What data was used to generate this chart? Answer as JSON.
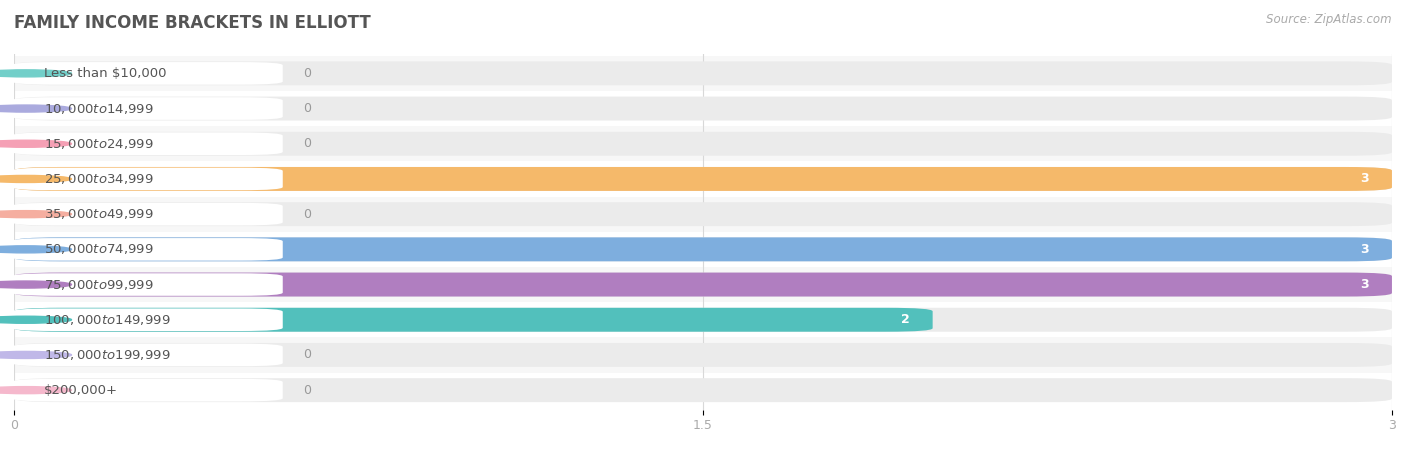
{
  "title": "FAMILY INCOME BRACKETS IN ELLIOTT",
  "source": "Source: ZipAtlas.com",
  "categories": [
    "Less than $10,000",
    "$10,000 to $14,999",
    "$15,000 to $24,999",
    "$25,000 to $34,999",
    "$35,000 to $49,999",
    "$50,000 to $74,999",
    "$75,000 to $99,999",
    "$100,000 to $149,999",
    "$150,000 to $199,999",
    "$200,000+"
  ],
  "values": [
    0,
    0,
    0,
    3,
    0,
    3,
    3,
    2,
    0,
    0
  ],
  "bar_colors": [
    "#72cfc9",
    "#aaaade",
    "#f5a0b5",
    "#f5b96a",
    "#f5aea0",
    "#7eaede",
    "#b07ec0",
    "#52c0bc",
    "#c0b8e8",
    "#f5b8cc"
  ],
  "xlim": [
    0,
    3
  ],
  "xticks": [
    0,
    1.5,
    3
  ],
  "bg_color": "#ffffff",
  "bar_bg_color": "#ebebeb",
  "row_bg_even": "#f7f7f7",
  "row_bg_odd": "#ffffff",
  "title_fontsize": 12,
  "source_fontsize": 8.5,
  "label_fontsize": 9.5,
  "value_fontsize": 9
}
